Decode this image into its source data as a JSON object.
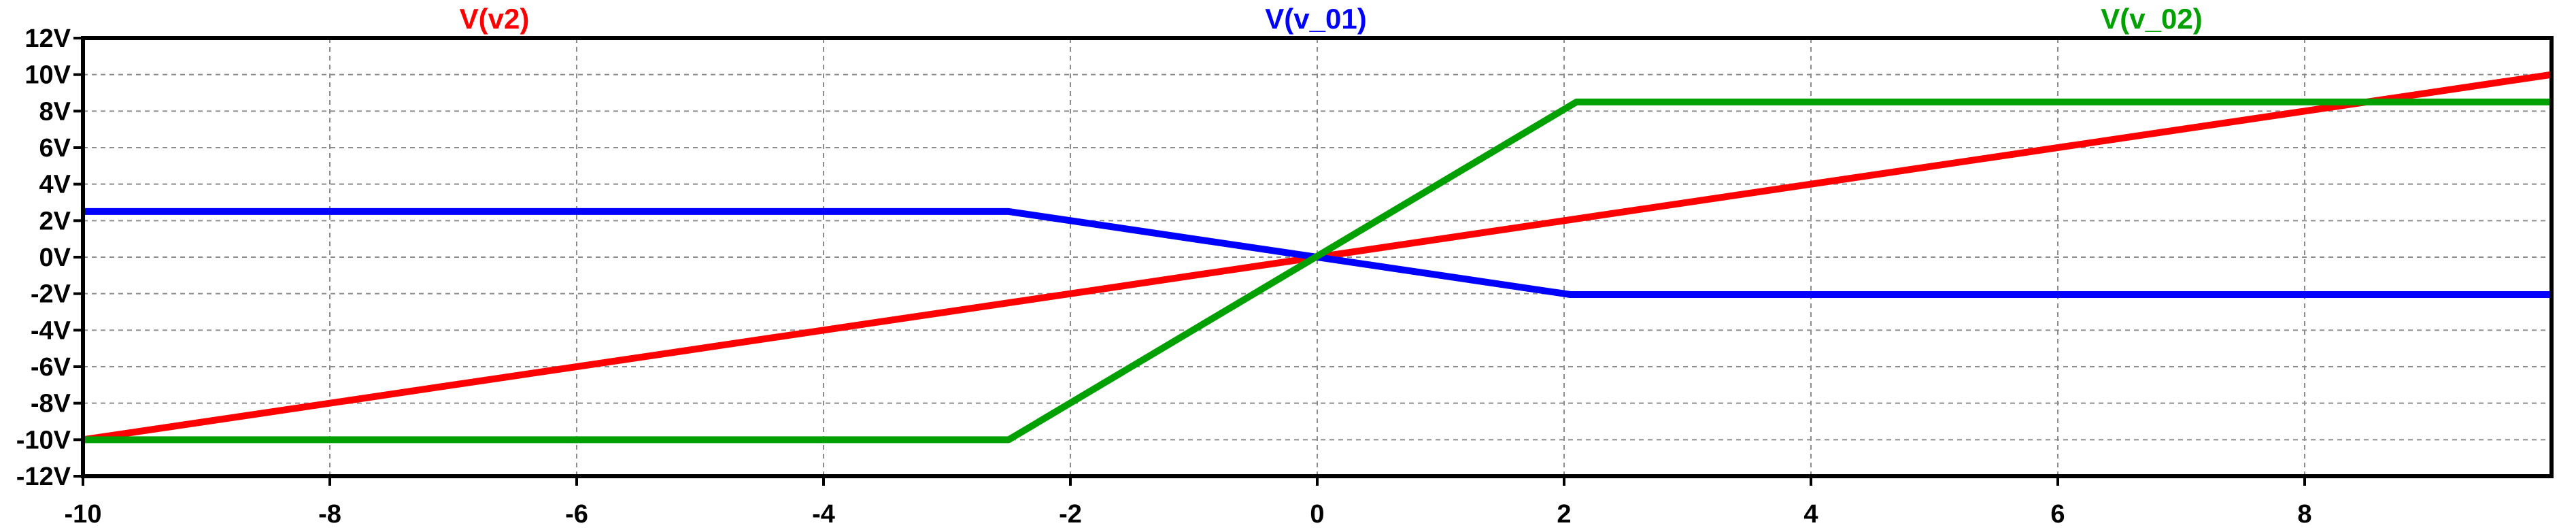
{
  "chart_data": {
    "type": "line",
    "title": "",
    "xlabel": "",
    "ylabel": "",
    "xlim": [
      -10,
      10
    ],
    "ylim": [
      -12,
      12
    ],
    "grid": true,
    "x_ticks": [
      {
        "value": -10,
        "label": "-10"
      },
      {
        "value": -8,
        "label": "-8"
      },
      {
        "value": -6,
        "label": "-6"
      },
      {
        "value": -4,
        "label": "-4"
      },
      {
        "value": -2,
        "label": "-2"
      },
      {
        "value": 0,
        "label": "0"
      },
      {
        "value": 2,
        "label": "2"
      },
      {
        "value": 4,
        "label": "4"
      },
      {
        "value": 6,
        "label": "6"
      },
      {
        "value": 8,
        "label": "8"
      }
    ],
    "y_ticks": [
      {
        "value": 12,
        "label": "12V"
      },
      {
        "value": 10,
        "label": "10V"
      },
      {
        "value": 8,
        "label": "8V"
      },
      {
        "value": 6,
        "label": "6V"
      },
      {
        "value": 4,
        "label": "4V"
      },
      {
        "value": 2,
        "label": "2V"
      },
      {
        "value": 0,
        "label": "0V"
      },
      {
        "value": -2,
        "label": "-2V"
      },
      {
        "value": -4,
        "label": "-4V"
      },
      {
        "value": -6,
        "label": "-6V"
      },
      {
        "value": -8,
        "label": "-8V"
      },
      {
        "value": -10,
        "label": "-10V"
      },
      {
        "value": -12,
        "label": "-12V"
      }
    ],
    "series": [
      {
        "name": "V(v2)",
        "color": "#ff0000",
        "x": [
          -10,
          10
        ],
        "y": [
          -10,
          10
        ]
      },
      {
        "name": "V(v_01)",
        "color": "#0000ff",
        "x": [
          -10,
          -2.5,
          2.05,
          10
        ],
        "y": [
          2.5,
          2.5,
          -2.05,
          -2.05
        ]
      },
      {
        "name": "V(v_02)",
        "color": "#00a000",
        "x": [
          -10,
          -2.5,
          2.1,
          10
        ],
        "y": [
          -10,
          -10,
          8.5,
          8.5
        ]
      }
    ],
    "legend": {
      "placement": "top"
    }
  }
}
